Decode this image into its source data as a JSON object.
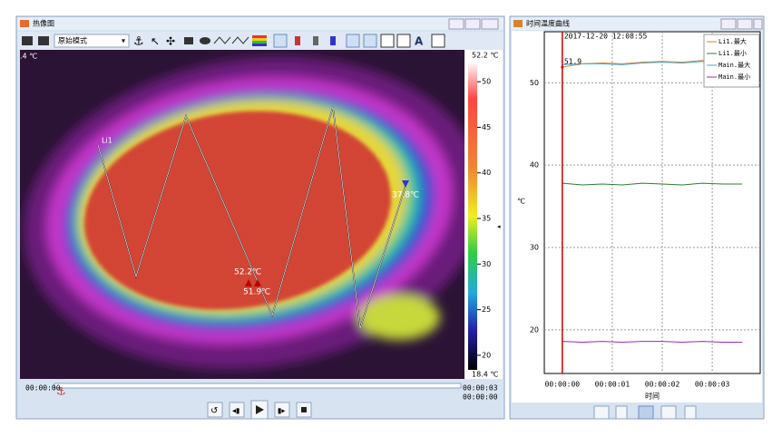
{
  "left_window": {
    "title": "热像图",
    "mode": "原始模式",
    "corner_temp": ".4 ℃",
    "annotations": {
      "line": "Li1",
      "max_a": "52.2℃",
      "max_b": "51.9℃",
      "min": "37.8℃"
    },
    "colorbar": {
      "max_label": "52.2 ℃",
      "min_label": "18.4 ℃",
      "lim": [
        18.4,
        52.2
      ],
      "ticks": [
        50,
        45,
        40,
        35,
        30,
        25,
        20
      ]
    },
    "timeline": {
      "position": "00:00:00",
      "end": "00:00:03",
      "current": "00:00:00"
    }
  },
  "right_window": {
    "title": "时间温度曲线"
  },
  "chart_data": {
    "type": "line",
    "xlabel": "时间",
    "ylabel": "℃",
    "x": [
      0,
      0.4,
      0.8,
      1.2,
      1.6,
      2.0,
      2.4,
      2.8,
      3.2,
      3.6
    ],
    "xlim": [
      -0.36,
      3.96
    ],
    "xticks": [
      {
        "value": 0,
        "label": "00:00:00"
      },
      {
        "value": 1,
        "label": "00:00:01"
      },
      {
        "value": 2,
        "label": "00:00:02"
      },
      {
        "value": 3,
        "label": "00:00:03"
      }
    ],
    "ylim": [
      14.7,
      56.2
    ],
    "yticks": [
      20,
      30,
      40,
      50
    ],
    "grid": true,
    "cursor": {
      "x": 0,
      "value": 51.9,
      "time": "2017-12-20 12:08:55"
    },
    "series": [
      {
        "name": "Li1.最大",
        "color": "#d9822b",
        "values": [
          51.9,
          52.3,
          52.4,
          52.3,
          52.5,
          52.6,
          52.5,
          52.7,
          52.5,
          52.6
        ]
      },
      {
        "name": "Li1.最小",
        "color": "#2e7d32",
        "values": [
          37.8,
          37.6,
          37.7,
          37.6,
          37.8,
          37.7,
          37.6,
          37.8,
          37.7,
          37.7
        ]
      },
      {
        "name": "Main.最大",
        "color": "#3fa9d6",
        "values": [
          52.2,
          52.3,
          52.3,
          52.2,
          52.4,
          52.5,
          52.4,
          52.6,
          52.4,
          52.5
        ]
      },
      {
        "name": "Main.最小",
        "color": "#9c27b0",
        "values": [
          18.6,
          18.5,
          18.6,
          18.5,
          18.6,
          18.6,
          18.5,
          18.6,
          18.5,
          18.5
        ]
      }
    ]
  }
}
